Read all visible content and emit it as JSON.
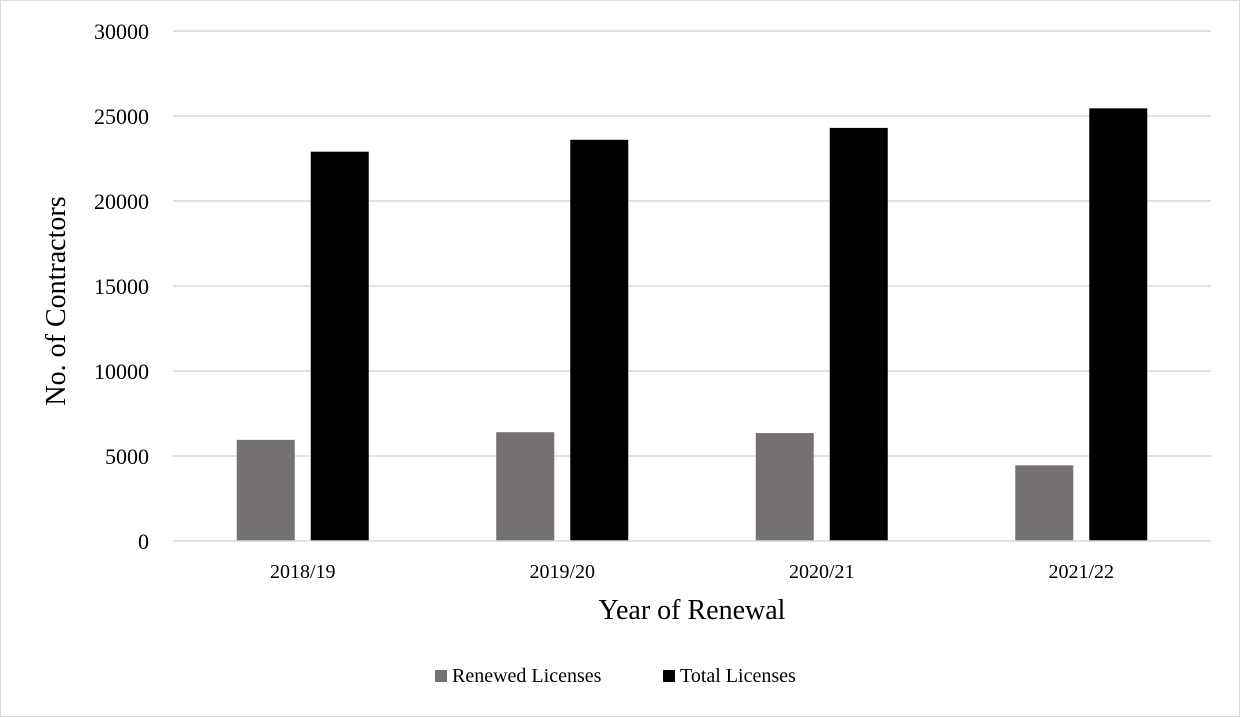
{
  "chart_data": {
    "type": "bar",
    "title": "",
    "xlabel": "Year of Renewal",
    "ylabel": "No. of Contractors",
    "categories": [
      "2018/19",
      "2019/20",
      "2020/21",
      "2021/22"
    ],
    "series": [
      {
        "name": "Renewed Licenses",
        "values": [
          5950,
          6400,
          6350,
          4450
        ],
        "color": "#767171"
      },
      {
        "name": "Total Licenses",
        "values": [
          22900,
          23600,
          24300,
          25450
        ],
        "color": "#000000"
      }
    ],
    "ylim": [
      0,
      30000
    ],
    "yticks": [
      "0",
      "5000",
      "10000",
      "15000",
      "20000",
      "25000",
      "30000"
    ],
    "grid": true,
    "legend_position": "bottom"
  }
}
